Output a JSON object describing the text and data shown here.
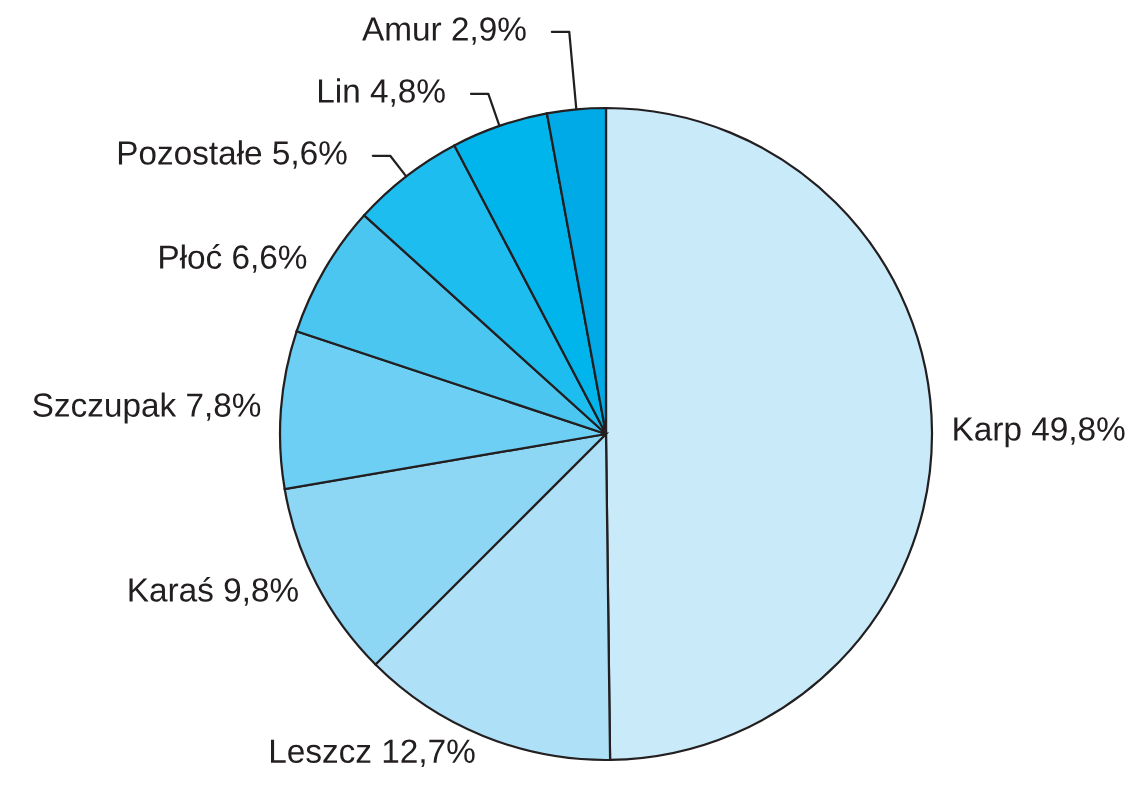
{
  "chart_data": {
    "type": "pie",
    "categories": [
      "Karp",
      "Leszcz",
      "Karaś",
      "Szczupak",
      "Płoć",
      "Pozostałe",
      "Lin",
      "Amur"
    ],
    "values": [
      49.8,
      12.7,
      9.8,
      7.8,
      6.6,
      5.6,
      4.8,
      2.9
    ],
    "value_labels": [
      "49,8%",
      "12,7%",
      "9,8%",
      "7,8%",
      "6,6%",
      "5,6%",
      "4,8%",
      "2,9%"
    ],
    "colors": [
      "#c8eaf9",
      "#aee0f8",
      "#8dd7f5",
      "#6dcff4",
      "#4ac6f1",
      "#1dbdef",
      "#00b5ec",
      "#00aae6"
    ]
  }
}
